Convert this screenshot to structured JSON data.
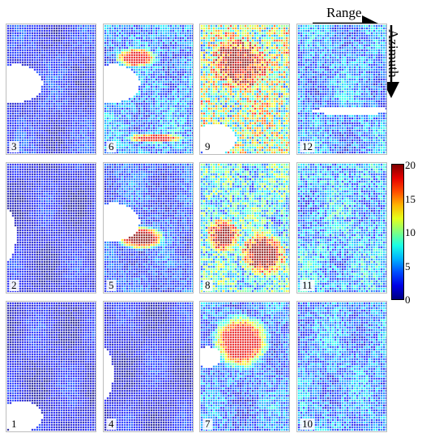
{
  "chart_data": {
    "type": "heatmap",
    "title": "",
    "xlabel": "Range",
    "ylabel": "Azimuth",
    "colormap": "jet",
    "colorbar": {
      "range": [
        0,
        20
      ],
      "ticks": [
        "0",
        "5",
        "10",
        "15",
        "20"
      ]
    },
    "panel_grid": {
      "rows": 3,
      "cols": 4
    },
    "panels": [
      {
        "label": "3",
        "row": 0,
        "col": 0,
        "mean": 2.5,
        "peak": 5,
        "hot_region": "none",
        "blank_region": "left-middle"
      },
      {
        "label": "6",
        "row": 0,
        "col": 1,
        "mean": 5,
        "peak": 18,
        "hot_region": "upper-left, lower band",
        "blank_region": "left-middle"
      },
      {
        "label": "9",
        "row": 0,
        "col": 2,
        "mean": 11,
        "peak": 20,
        "hot_region": "upper-center",
        "blank_region": "lower-left"
      },
      {
        "label": "12",
        "row": 0,
        "col": 3,
        "mean": 5,
        "peak": 9,
        "hot_region": "none",
        "blank_region": "middle band"
      },
      {
        "label": "2",
        "row": 1,
        "col": 0,
        "mean": 2,
        "peak": 5,
        "hot_region": "none",
        "blank_region": "left edge"
      },
      {
        "label": "5",
        "row": 1,
        "col": 1,
        "mean": 3.5,
        "peak": 20,
        "hot_region": "center-left",
        "blank_region": "left-middle"
      },
      {
        "label": "8",
        "row": 1,
        "col": 2,
        "mean": 8,
        "peak": 20,
        "hot_region": "lower-right",
        "blank_region": "none"
      },
      {
        "label": "11",
        "row": 1,
        "col": 3,
        "mean": 6,
        "peak": 10,
        "hot_region": "none",
        "blank_region": "none"
      },
      {
        "label": "1",
        "row": 2,
        "col": 0,
        "mean": 2,
        "peak": 5,
        "hot_region": "none",
        "blank_region": "lower-left"
      },
      {
        "label": "4",
        "row": 2,
        "col": 1,
        "mean": 2,
        "peak": 5,
        "hot_region": "none",
        "blank_region": "left edge"
      },
      {
        "label": "7",
        "row": 2,
        "col": 2,
        "mean": 4.5,
        "peak": 18,
        "hot_region": "upper-center",
        "blank_region": "upper-left"
      },
      {
        "label": "10",
        "row": 2,
        "col": 3,
        "mean": 5,
        "peak": 8,
        "hot_region": "none",
        "blank_region": "none"
      }
    ]
  }
}
